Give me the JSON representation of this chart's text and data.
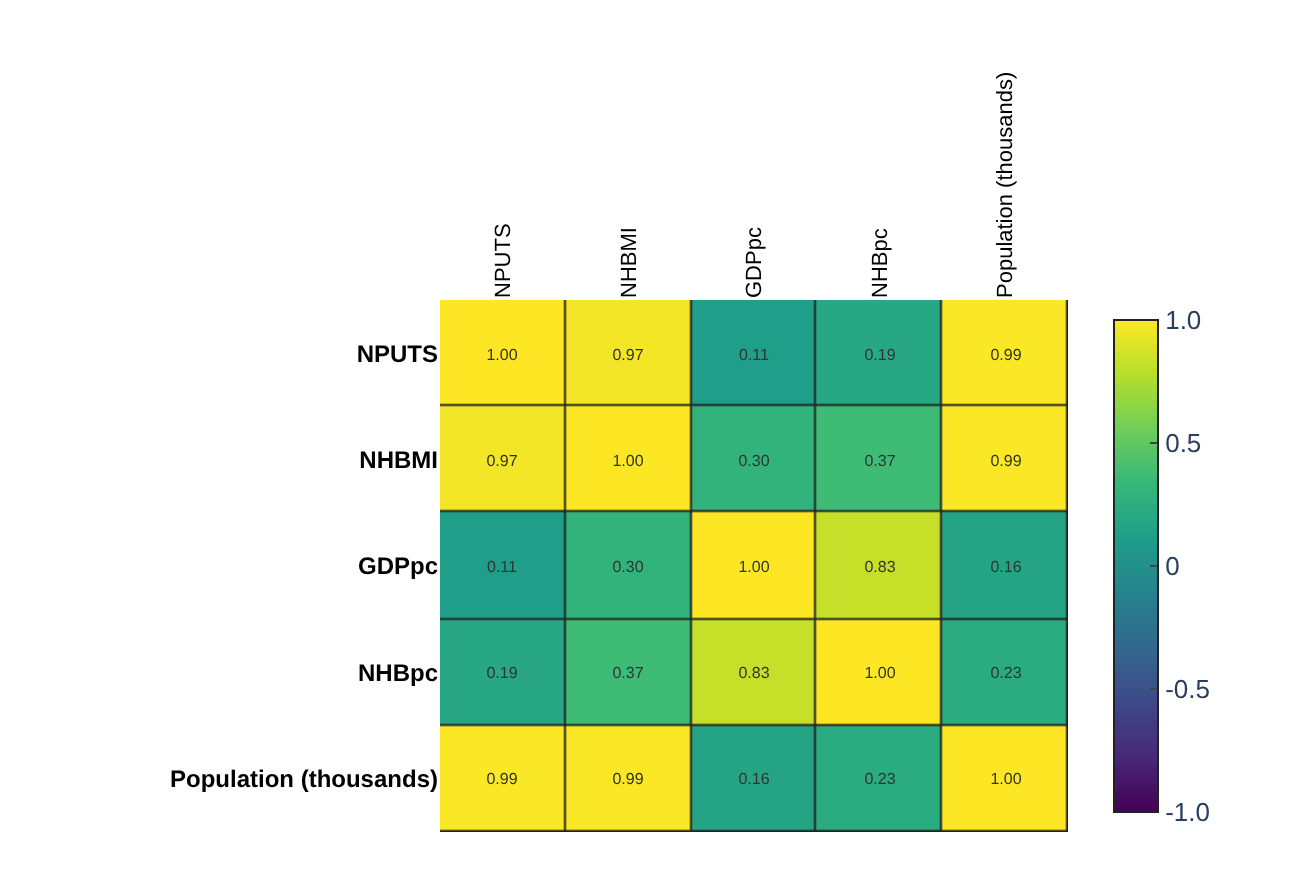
{
  "chart_data": {
    "type": "heatmap",
    "categories": [
      "NPUTS",
      "NHBMI",
      "GDPpc",
      "NHBpc",
      "Population (thousands)"
    ],
    "y_categories": [
      "NPUTS",
      "NHBMI",
      "GDPpc",
      "NHBpc",
      "Population (thousands)"
    ],
    "cells": [
      [
        1.0,
        0.97,
        0.11,
        0.19,
        0.99
      ],
      [
        0.97,
        1.0,
        0.3,
        0.37,
        0.99
      ],
      [
        0.11,
        0.3,
        1.0,
        0.83,
        0.16
      ],
      [
        0.19,
        0.37,
        0.83,
        1.0,
        0.23
      ],
      [
        0.99,
        0.99,
        0.16,
        0.23,
        1.0
      ]
    ],
    "cell_labels": [
      [
        "1.00",
        "0.97",
        "0.11",
        "0.19",
        "0.99"
      ],
      [
        "0.97",
        "1.00",
        "0.30",
        "0.37",
        "0.99"
      ],
      [
        "0.11",
        "0.30",
        "1.00",
        "0.83",
        "0.16"
      ],
      [
        "0.19",
        "0.37",
        "0.83",
        "1.00",
        "0.23"
      ],
      [
        "0.99",
        "0.99",
        "0.16",
        "0.23",
        "1.00"
      ]
    ],
    "clim": [
      -1.0,
      1.0
    ],
    "cticks": [
      {
        "value": 1.0,
        "label": "1.0"
      },
      0.5,
      0,
      -0.5,
      {
        "value": -1.0,
        "label": "-1.0"
      }
    ]
  }
}
